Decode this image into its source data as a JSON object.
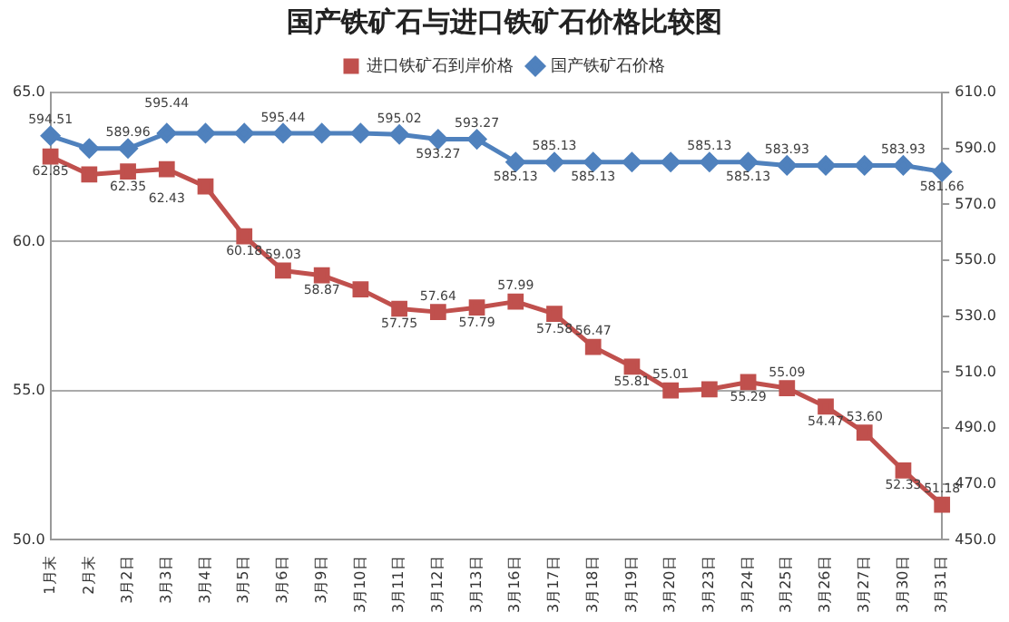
{
  "chart_data": {
    "type": "line",
    "title": "国产铁矿石与进口铁矿石价格比较图",
    "categories": [
      "1月末",
      "2月末",
      "3月2日",
      "3月3日",
      "3月4日",
      "3月5日",
      "3月6日",
      "3月9日",
      "3月10日",
      "3月11日",
      "3月12日",
      "3月13日",
      "3月16日",
      "3月17日",
      "3月18日",
      "3月19日",
      "3月20日",
      "3月23日",
      "3月24日",
      "3月25日",
      "3月26日",
      "3月27日",
      "3月30日",
      "3月31日"
    ],
    "series": [
      {
        "name": "进口铁矿石到岸价格",
        "color": "#c0504d",
        "marker": "square",
        "values": [
          62.85,
          62.25,
          62.35,
          62.43,
          61.85,
          60.18,
          59.03,
          58.87,
          58.4,
          57.75,
          57.64,
          57.79,
          57.99,
          57.58,
          56.47,
          55.81,
          55.01,
          55.05,
          55.29,
          55.09,
          54.47,
          53.6,
          52.33,
          51.18
        ],
        "value_labels": [
          "62.85",
          null,
          "62.35",
          "62.43",
          null,
          "60.18",
          "59.03",
          "58.87",
          null,
          "57.75",
          "57.64",
          "57.79",
          "57.99",
          "57.58",
          "56.47",
          "55.81",
          "55.01",
          null,
          "55.29",
          "55.09",
          "54.47",
          "53.60",
          "52.33",
          "51.18"
        ]
      },
      {
        "name": "国产铁矿石价格",
        "color": "#4f81bd",
        "marker": "diamond",
        "axis": "y2",
        "values": [
          594.51,
          589.96,
          589.96,
          595.44,
          595.44,
          595.44,
          595.44,
          595.44,
          595.44,
          595.02,
          593.27,
          593.27,
          585.13,
          585.13,
          585.13,
          585.13,
          585.13,
          585.13,
          585.13,
          583.93,
          583.93,
          583.93,
          583.93,
          581.66
        ],
        "value_labels": [
          "594.51",
          null,
          "589.96",
          "595.44",
          null,
          null,
          "595.44",
          null,
          null,
          "595.02",
          "593.27",
          "593.27",
          "585.13",
          "585.13",
          "585.13",
          null,
          null,
          "585.13",
          "585.13",
          "583.93",
          null,
          null,
          "583.93",
          "581.66"
        ]
      }
    ],
    "ylim": [
      50,
      65
    ],
    "yticks": [
      {
        "value": 50,
        "label": "50.0"
      },
      {
        "value": 55,
        "label": "55.0"
      },
      {
        "value": 60,
        "label": "60.0"
      },
      {
        "value": 65,
        "label": "65.0"
      }
    ],
    "y2lim": [
      450,
      610
    ],
    "y2ticks": [
      {
        "value": 450,
        "label": "450.0"
      },
      {
        "value": 470,
        "label": "470.0"
      },
      {
        "value": 490,
        "label": "490.0"
      },
      {
        "value": 510,
        "label": "510.0"
      },
      {
        "value": 530,
        "label": "530.0"
      },
      {
        "value": 550,
        "label": "550.0"
      },
      {
        "value": 570,
        "label": "570.0"
      },
      {
        "value": 590,
        "label": "590.0"
      },
      {
        "value": 610,
        "label": "610.0"
      }
    ],
    "grid": "y",
    "legend": "top"
  }
}
